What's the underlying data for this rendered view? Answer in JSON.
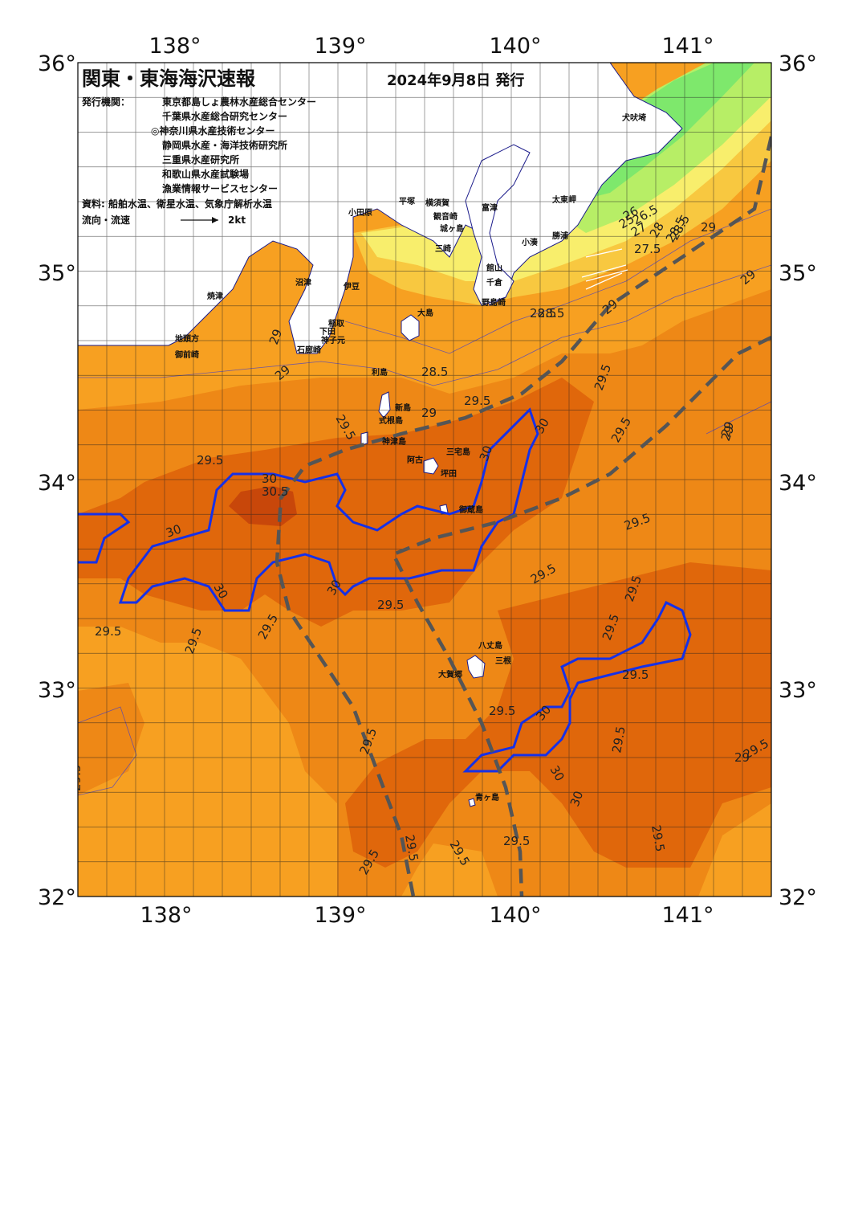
{
  "header": {
    "title": "関東・東海海沢速報",
    "date": "2024年9月8日 発行",
    "issuer_label": "発行機関：",
    "issuers": [
      "東京都島しょ農林水産総合センター",
      "千葉県水産総合研究センター",
      "◎神奈川県水産技術センター",
      "静岡県水産・海洋技術研究所",
      "三重県水産研究所",
      "和歌山県水産試験場",
      "漁業情報サービスセンター"
    ],
    "sources": "資料: 船舶水温、衛星水温、気象庁解析水温",
    "flow_label": "流向・流速",
    "scale_label": "2kt"
  },
  "axes": {
    "top": [
      "138°",
      "139°",
      "140°",
      "141°"
    ],
    "bottom": [
      "138°",
      "139°",
      "140°",
      "141°"
    ],
    "left": [
      "36°",
      "35°",
      "34°",
      "33°",
      "32°"
    ],
    "right": [
      "36°",
      "35°",
      "34°",
      "33°",
      "32°"
    ]
  },
  "colors": {
    "sea_base": "#F7A021",
    "warm_29_5": "#EE8816",
    "warm_30": "#E0670B",
    "warm_30_5": "#C8470A",
    "cool_28": "#F8C840",
    "cool_27": "#F8EE6C",
    "cool_26": "#B7EE66",
    "cool_25": "#7EE86C",
    "land": "#ffffff",
    "isotherm_30": "#1530E8",
    "kuroshio": "#555555",
    "grid": "#222222"
  },
  "places": [
    {
      "name": "犬吠埼"
    },
    {
      "name": "太東岬"
    },
    {
      "name": "勝浦"
    },
    {
      "name": "小湊"
    },
    {
      "name": "館山"
    },
    {
      "name": "千倉"
    },
    {
      "name": "野島崎"
    },
    {
      "name": "富津"
    },
    {
      "name": "横須賀"
    },
    {
      "name": "観音崎"
    },
    {
      "name": "城ヶ島"
    },
    {
      "name": "三崎"
    },
    {
      "name": "平塚"
    },
    {
      "name": "小田原"
    },
    {
      "name": "沼津"
    },
    {
      "name": "伊豆"
    },
    {
      "name": "焼津"
    },
    {
      "name": "地頭方"
    },
    {
      "name": "御前崎"
    },
    {
      "name": "稲取"
    },
    {
      "name": "下田"
    },
    {
      "name": "神子元"
    },
    {
      "name": "石廊崎"
    },
    {
      "name": "大島"
    },
    {
      "name": "利島"
    },
    {
      "name": "新島"
    },
    {
      "name": "式根島"
    },
    {
      "name": "神津島"
    },
    {
      "name": "三宅島"
    },
    {
      "name": "阿古"
    },
    {
      "name": "坪田"
    },
    {
      "name": "御蔵島"
    },
    {
      "name": "八丈島"
    },
    {
      "name": "三根"
    },
    {
      "name": "大賀郷"
    },
    {
      "name": "青ヶ島"
    }
  ],
  "isotherm_labels": [
    "25",
    "26",
    "26.5",
    "27",
    "27.5",
    "28",
    "28.5",
    "28.5",
    "29",
    "29",
    "29",
    "29",
    "29",
    "28.5",
    "28.5",
    "28.5",
    "29",
    "29",
    "29.5",
    "29.5",
    "29.5",
    "29.5",
    "29.5",
    "29.5",
    "29.5",
    "30",
    "30",
    "30",
    "30",
    "30",
    "30",
    "30",
    "30.5",
    "29.5",
    "29.5",
    "29.5",
    "29.5",
    "29.5",
    "29.5",
    "29.5",
    "29.5",
    "29.5",
    "30",
    "30",
    "29.5",
    "29.5",
    "29.5",
    "29.5",
    "29.5",
    "29.5",
    "29.5",
    "29.5",
    "29",
    "29"
  ],
  "legend_arrow_kt": 2
}
